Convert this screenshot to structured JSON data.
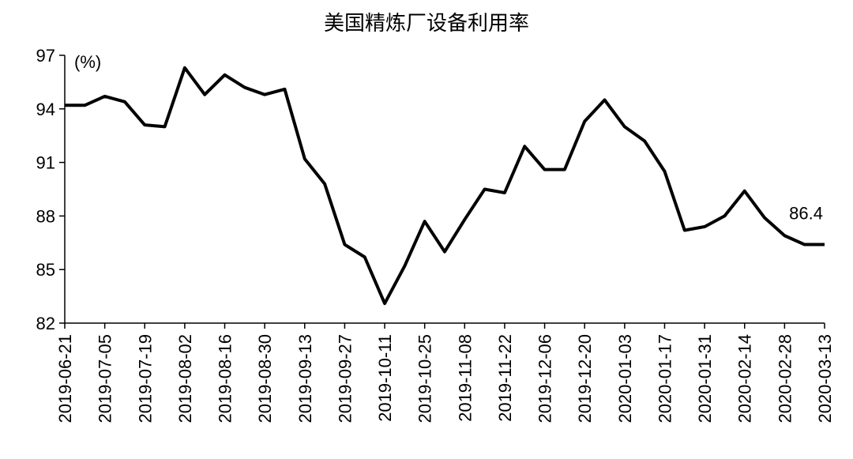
{
  "chart_data": {
    "type": "line",
    "title": "美国精炼厂设备利用率",
    "y_unit": "(%)",
    "annotation": "86.4",
    "categories": [
      "2019-06-21",
      null,
      "2019-07-05",
      null,
      "2019-07-19",
      null,
      "2019-08-02",
      null,
      "2019-08-16",
      null,
      "2019-08-30",
      null,
      "2019-09-13",
      null,
      "2019-09-27",
      null,
      "2019-10-11",
      null,
      "2019-10-25",
      null,
      "2019-11-08",
      null,
      "2019-11-22",
      null,
      "2019-12-06",
      null,
      "2019-12-20",
      null,
      "2020-01-03",
      null,
      "2020-01-17",
      null,
      "2020-01-31",
      null,
      "2020-02-14",
      null,
      "2020-02-28",
      null,
      "2020-03-13"
    ],
    "series": [
      {
        "name": "美国精炼厂设备利用率",
        "color": "#000000",
        "values": [
          94.2,
          94.2,
          94.7,
          94.4,
          93.1,
          93.0,
          96.3,
          94.8,
          95.9,
          95.2,
          94.8,
          95.1,
          91.2,
          89.8,
          86.4,
          85.7,
          83.1,
          85.2,
          87.7,
          86.0,
          87.8,
          89.5,
          89.3,
          91.9,
          90.6,
          90.6,
          93.3,
          94.5,
          93.0,
          92.2,
          90.5,
          87.2,
          87.4,
          88.0,
          89.4,
          87.9,
          86.9,
          86.4,
          86.4
        ]
      }
    ],
    "ylim": [
      82,
      97
    ],
    "yticks": [
      82,
      85,
      88,
      91,
      94,
      97
    ],
    "grid": false
  }
}
